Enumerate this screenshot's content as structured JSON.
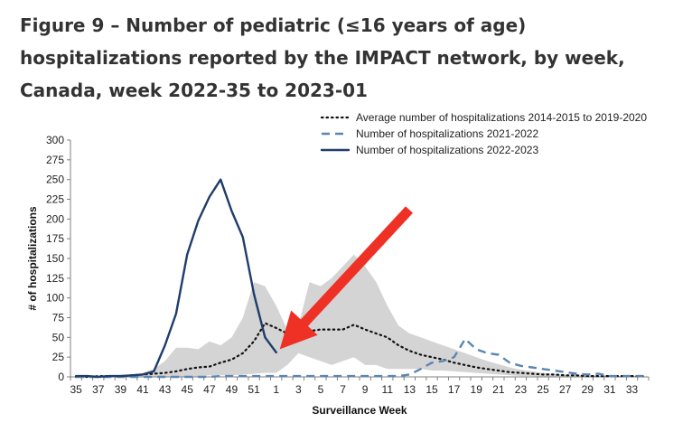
{
  "title": "Figure 9 – Number of pediatric (≤16 years of age) hospitalizations reported by the IMPACT network, by week, Canada, week 2022-35 to 2023-01",
  "colors": {
    "average": "#111111",
    "season_2021": "#5b86b3",
    "season_2022": "#1f3d6b",
    "range_fill": "#d4d4d4",
    "arrow": "#ee3124"
  },
  "chart_data": {
    "type": "line",
    "title": "Figure 9 – Number of pediatric (≤16 years of age) hospitalizations reported by the IMPACT network, by week, Canada, week 2022-35 to 2023-01",
    "xlabel": "Surveillance Week",
    "ylabel": "# of hospitalizations",
    "ylim": [
      0,
      300
    ],
    "yticks": [
      "0",
      "25",
      "50",
      "75",
      "100",
      "125",
      "150",
      "175",
      "200",
      "225",
      "250",
      "275",
      "300"
    ],
    "weeks": [
      35,
      36,
      37,
      38,
      39,
      40,
      41,
      42,
      43,
      44,
      45,
      46,
      47,
      48,
      49,
      50,
      51,
      52,
      1,
      2,
      3,
      4,
      5,
      6,
      7,
      8,
      9,
      10,
      11,
      12,
      13,
      14,
      15,
      16,
      17,
      18,
      19,
      20,
      21,
      22,
      23,
      24,
      25,
      26,
      27,
      28,
      29,
      30,
      31,
      32,
      33,
      34
    ],
    "xtick_labels": [
      "35",
      "37",
      "39",
      "41",
      "43",
      "45",
      "47",
      "49",
      "51",
      "1",
      "3",
      "5",
      "7",
      "9",
      "11",
      "13",
      "15",
      "17",
      "19",
      "21",
      "23",
      "25",
      "27",
      "29",
      "31",
      "33"
    ],
    "legend_position": "top-right",
    "series": [
      {
        "name": "Average number of hospitalizations 2014-2015 to 2019-2020",
        "style": "dotted",
        "values": [
          0,
          0,
          1,
          1,
          1,
          2,
          3,
          4,
          5,
          7,
          10,
          12,
          13,
          18,
          22,
          30,
          45,
          68,
          62,
          55,
          57,
          58,
          60,
          60,
          60,
          66,
          60,
          55,
          50,
          40,
          33,
          28,
          25,
          22,
          18,
          15,
          12,
          10,
          8,
          6,
          5,
          4,
          3,
          3,
          2,
          2,
          1,
          1,
          1,
          1,
          1,
          1
        ]
      },
      {
        "name": "Number of hospitalizations 2021-2022",
        "style": "dashed",
        "values": [
          0,
          0,
          0,
          0,
          0,
          0,
          0,
          0,
          0,
          0,
          0,
          0,
          0,
          1,
          1,
          1,
          1,
          1,
          1,
          1,
          1,
          1,
          1,
          1,
          1,
          1,
          1,
          1,
          1,
          1,
          3,
          10,
          18,
          20,
          25,
          48,
          35,
          30,
          28,
          18,
          14,
          12,
          10,
          8,
          6,
          4,
          3,
          4,
          1,
          1,
          1,
          1
        ]
      },
      {
        "name": "Number of hospitalizations 2022-2023",
        "style": "solid",
        "values": [
          1,
          1,
          0,
          1,
          1,
          2,
          3,
          7,
          40,
          80,
          155,
          198,
          228,
          250,
          210,
          177,
          105,
          50,
          31
        ]
      }
    ],
    "range_upper": [
      1,
      1,
      1,
      2,
      2,
      3,
      5,
      10,
      20,
      37,
      37,
      35,
      45,
      40,
      50,
      75,
      120,
      115,
      90,
      60,
      65,
      120,
      115,
      125,
      140,
      155,
      140,
      120,
      90,
      65,
      55,
      50,
      45,
      40,
      35,
      30,
      25,
      20,
      16,
      12,
      9,
      7,
      5,
      4,
      3,
      3,
      2,
      2,
      2,
      1,
      1,
      1
    ],
    "range_lower": [
      0,
      0,
      0,
      0,
      0,
      0,
      0,
      0,
      0,
      0,
      0,
      0,
      2,
      2,
      2,
      3,
      4,
      5,
      5,
      15,
      30,
      25,
      20,
      15,
      20,
      25,
      15,
      15,
      10,
      10,
      10,
      10,
      8,
      8,
      7,
      6,
      5,
      4,
      3,
      2,
      1,
      1,
      0,
      0,
      0,
      0,
      0,
      0,
      0,
      0,
      0,
      0
    ],
    "annotation": "red arrow pointing at week 2023-01"
  }
}
